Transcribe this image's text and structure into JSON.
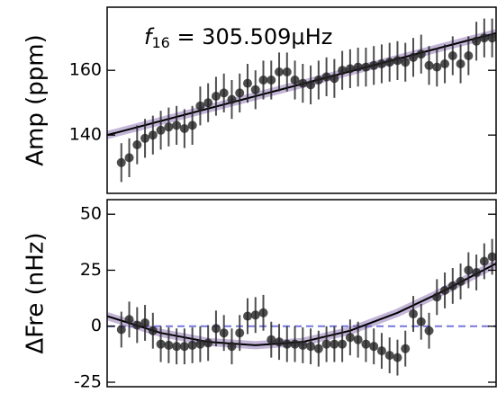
{
  "chart_data": [
    {
      "type": "scatter",
      "ylabel": "Amp (ppm)",
      "annotation": {
        "symbol": "f",
        "subscript": "16",
        "text": " = 305.509μHz"
      },
      "x": [
        1,
        2,
        3,
        4,
        5,
        6,
        7,
        8,
        9,
        10,
        11,
        12,
        13,
        14,
        15,
        16,
        17,
        18,
        19,
        20,
        21,
        22,
        23,
        24,
        25,
        26,
        27,
        28,
        29,
        30,
        31,
        32,
        33,
        34,
        35,
        36,
        37,
        38,
        39,
        40,
        41,
        42,
        43,
        44,
        45,
        46,
        47,
        48
      ],
      "values": [
        131.5,
        133,
        137,
        139,
        140,
        141.5,
        142.5,
        143,
        142,
        143,
        149,
        150,
        152,
        153,
        151,
        153,
        156,
        154,
        157,
        157,
        159.5,
        159.5,
        157,
        156,
        155.5,
        157,
        158,
        157.5,
        160,
        160.5,
        161,
        161,
        161.5,
        162,
        162.5,
        163,
        162.5,
        164,
        165,
        161.5,
        161,
        162,
        164.5,
        162,
        164.5,
        169,
        170,
        170
      ],
      "error": 6,
      "color": "#222222",
      "fit": {
        "x": [
          -0.8,
          48.5
        ],
        "values": [
          140,
          171.5
        ],
        "color": "#000000",
        "band_color": "#7a5aa6"
      },
      "xlim": [
        -0.8,
        48.5
      ],
      "ylim": [
        122,
        179.5
      ],
      "yticks": [
        140,
        160
      ]
    },
    {
      "type": "scatter",
      "ylabel": "ΔFre (nHz)",
      "x": [
        1,
        2,
        3,
        4,
        5,
        6,
        7,
        8,
        9,
        10,
        11,
        12,
        13,
        14,
        15,
        16,
        17,
        18,
        19,
        20,
        21,
        22,
        23,
        24,
        25,
        26,
        27,
        28,
        29,
        30,
        31,
        32,
        33,
        34,
        35,
        36,
        37,
        38,
        39,
        40,
        41,
        42,
        43,
        44,
        45,
        46,
        47,
        48
      ],
      "values": [
        -1.5,
        3,
        0.5,
        1.5,
        -2,
        -8,
        -8.5,
        -9,
        -9,
        -8.5,
        -8,
        -7.5,
        -1,
        -3,
        -9,
        -3,
        4.5,
        5,
        6,
        -6,
        -7,
        -8,
        -8,
        -8.5,
        -9,
        -10,
        -8,
        -8,
        -8,
        -5,
        -6,
        -8,
        -9,
        -11,
        -13,
        -14,
        -10,
        5.5,
        2,
        -2,
        13,
        16,
        18,
        20,
        25,
        24,
        29,
        31
      ],
      "error": 8,
      "color": "#222222",
      "fit": {
        "x": [
          -0.8,
          6,
          12,
          18,
          24,
          30,
          36,
          42,
          48.5
        ],
        "values": [
          4.5,
          -3,
          -7,
          -8.5,
          -7,
          -2,
          6,
          16,
          28
        ],
        "color": "#000000",
        "band_color": "#7a5aa6"
      },
      "reference_line": {
        "value": 0,
        "color": "#7777dd"
      },
      "xlim": [
        -0.8,
        48.5
      ],
      "ylim": [
        -27,
        56.5
      ],
      "yticks": [
        -25,
        0,
        25,
        50
      ]
    }
  ]
}
